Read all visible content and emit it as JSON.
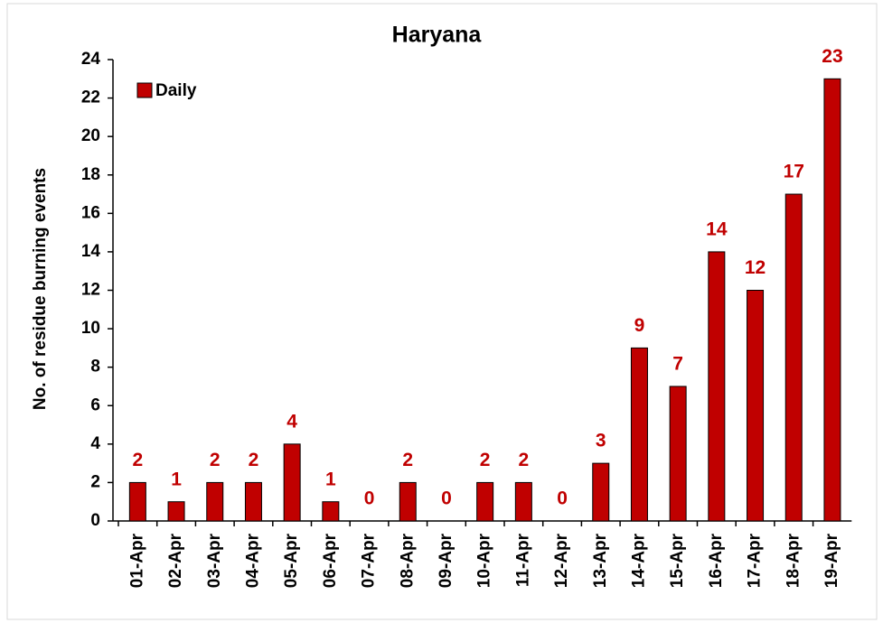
{
  "chart_data": {
    "type": "bar",
    "title": "Haryana",
    "y_label": "No. of residue burning events",
    "categories": [
      "01-Apr",
      "02-Apr",
      "03-Apr",
      "04-Apr",
      "05-Apr",
      "06-Apr",
      "07-Apr",
      "08-Apr",
      "09-Apr",
      "10-Apr",
      "11-Apr",
      "12-Apr",
      "13-Apr",
      "14-Apr",
      "15-Apr",
      "16-Apr",
      "17-Apr",
      "18-Apr",
      "19-Apr"
    ],
    "series": [
      {
        "name": "Daily",
        "color": "#c00000",
        "values": [
          2,
          1,
          2,
          2,
          4,
          1,
          0,
          2,
          0,
          2,
          2,
          0,
          3,
          9,
          7,
          14,
          12,
          17,
          23
        ]
      }
    ],
    "ylim": [
      0,
      24
    ],
    "yticks": [
      0,
      2,
      4,
      6,
      8,
      10,
      12,
      14,
      16,
      18,
      20,
      22,
      24
    ],
    "legend": "upper left",
    "grid": false
  }
}
